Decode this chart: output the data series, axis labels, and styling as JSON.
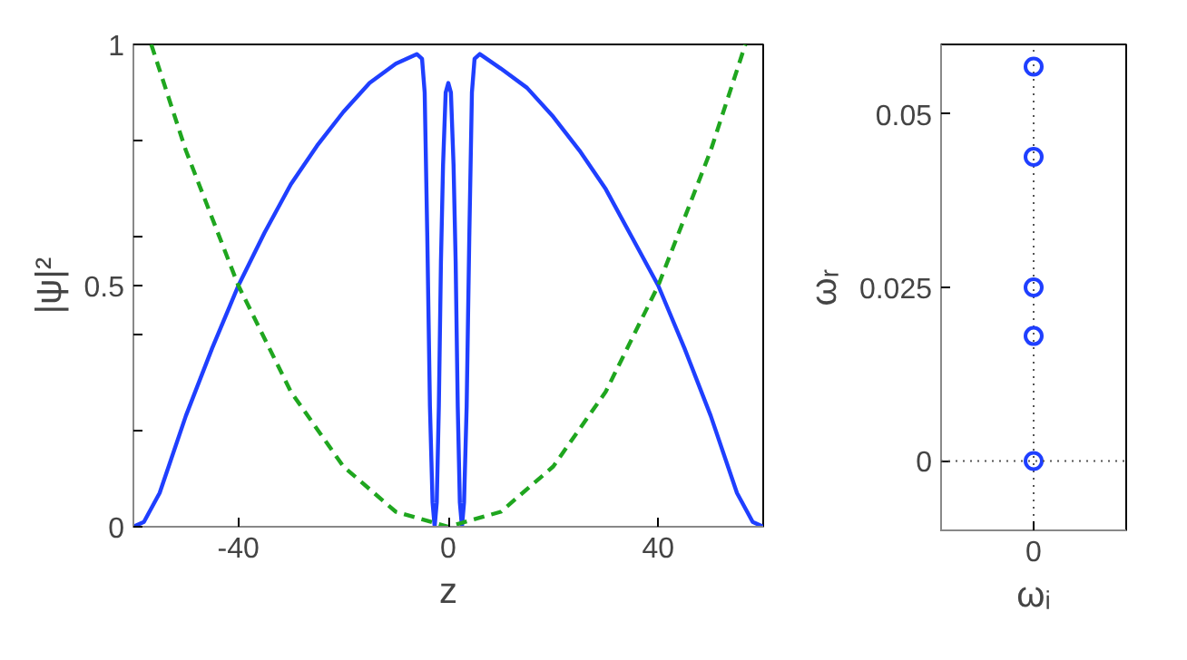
{
  "chart_data": [
    {
      "type": "line",
      "xlabel": "z",
      "ylabel": "|ψ|²",
      "xlim": [
        -60,
        60
      ],
      "ylim": [
        0,
        1
      ],
      "xticks": [
        -40,
        0,
        40
      ],
      "yticks": [
        0,
        {
          "value": 0.2,
          "label": null
        },
        {
          "value": 0.4,
          "label": null
        },
        0.5,
        {
          "value": 0.6,
          "label": null
        },
        {
          "value": 0.8,
          "label": null
        },
        1
      ],
      "grid": false,
      "series": [
        {
          "color": "#1f3fff",
          "line_style": "solid",
          "x": [
            -60,
            -58,
            -55,
            -50,
            -45,
            -40,
            -35,
            -30,
            -25,
            -20,
            -15,
            -10,
            -6,
            -5,
            -4.5,
            -4,
            -3.5,
            -3,
            -2.6,
            -2.2,
            -1.8,
            -1.4,
            -1,
            -0.5,
            0,
            0.5,
            1,
            1.4,
            1.8,
            2.2,
            2.6,
            3,
            3.5,
            4,
            4.5,
            5,
            6,
            10,
            15,
            20,
            25,
            30,
            35,
            40,
            45,
            50,
            55,
            58,
            60
          ],
          "values": [
            0,
            0.01,
            0.07,
            0.23,
            0.37,
            0.5,
            0.61,
            0.71,
            0.79,
            0.86,
            0.92,
            0.96,
            0.98,
            0.97,
            0.9,
            0.6,
            0.25,
            0.05,
            0,
            0.05,
            0.25,
            0.55,
            0.75,
            0.9,
            0.92,
            0.9,
            0.75,
            0.55,
            0.25,
            0.05,
            0,
            0.05,
            0.25,
            0.6,
            0.9,
            0.97,
            0.98,
            0.95,
            0.91,
            0.85,
            0.78,
            0.7,
            0.6,
            0.5,
            0.37,
            0.23,
            0.07,
            0.01,
            0
          ]
        },
        {
          "color": "#1fa61f",
          "line_style": "dashed",
          "x": [
            -56.6,
            -50,
            -40,
            -30,
            -20,
            -10,
            0,
            10,
            20,
            30,
            40,
            50,
            56.6
          ],
          "values": [
            1,
            0.78,
            0.5,
            0.28,
            0.125,
            0.031,
            0,
            0.031,
            0.125,
            0.28,
            0.5,
            0.78,
            1
          ]
        }
      ]
    },
    {
      "type": "scatter",
      "xlabel": "ωᵢ",
      "ylabel": "ωᵣ",
      "categories": [
        "0"
      ],
      "ylim": [
        -0.01,
        0.06
      ],
      "yticks": [
        0,
        0.025,
        0.05
      ],
      "grid": "x",
      "marker": "circle",
      "ref_lines": [
        {
          "axis": "y",
          "value": 0,
          "line_style": "dotted",
          "color": "#555555"
        }
      ],
      "series": [
        {
          "color": "#1f3fff",
          "x": [
            "0",
            "0",
            "0",
            "0",
            "0"
          ],
          "values": [
            0.0568,
            0.0438,
            0.025,
            0.018,
            0
          ]
        }
      ]
    }
  ]
}
